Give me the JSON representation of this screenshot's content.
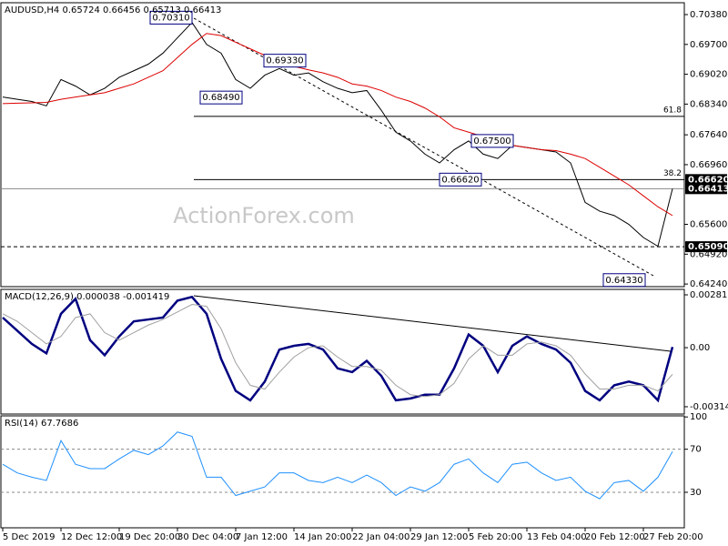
{
  "chart_data": [
    {
      "type": "line",
      "title": "AUDUSD,H4  0.65724 0.66456 0.65713 0.66413",
      "watermark": "ActionForex.com",
      "ylim": [
        0.6418,
        0.7065
      ],
      "yticks": [
        {
          "value": 0.7038,
          "label": "0.70380"
        },
        {
          "value": 0.697,
          "label": "0.69700"
        },
        {
          "value": 0.6902,
          "label": "0.69020"
        },
        {
          "value": 0.6834,
          "label": "0.68340"
        },
        {
          "value": 0.6764,
          "label": "0.67640"
        },
        {
          "value": 0.6696,
          "label": "0.66960"
        },
        {
          "value": 0.656,
          "label": "0.65600"
        },
        {
          "value": 0.6492,
          "label": "0.64920"
        },
        {
          "value": 0.6424,
          "label": "0.64240"
        }
      ],
      "series": [
        {
          "color": "#000000",
          "values": [
            0.685,
            0.6845,
            0.684,
            0.683,
            0.689,
            0.6875,
            0.6855,
            0.687,
            0.6895,
            0.691,
            0.6925,
            0.695,
            0.6985,
            0.702,
            0.697,
            0.695,
            0.689,
            0.687,
            0.69,
            0.6915,
            0.69,
            0.6905,
            0.6885,
            0.687,
            0.686,
            0.6865,
            0.682,
            0.677,
            0.675,
            0.672,
            0.67,
            0.673,
            0.675,
            0.672,
            0.671,
            0.674,
            0.6735,
            0.673,
            0.6725,
            0.67,
            0.661,
            0.659,
            0.658,
            0.656,
            0.653,
            0.651,
            0.66413
          ]
        },
        {
          "color": "#dd0000",
          "values": [
            0.6835,
            0.6836,
            0.6837,
            0.6838,
            0.6845,
            0.685,
            0.6855,
            0.686,
            0.687,
            0.688,
            0.6895,
            0.691,
            0.694,
            0.697,
            0.6995,
            0.699,
            0.6975,
            0.696,
            0.6945,
            0.693,
            0.692,
            0.6912,
            0.6905,
            0.6895,
            0.688,
            0.6875,
            0.6865,
            0.685,
            0.684,
            0.6825,
            0.6805,
            0.678,
            0.677,
            0.676,
            0.6745,
            0.674,
            0.6735,
            0.673,
            0.6728,
            0.672,
            0.671,
            0.669,
            0.667,
            0.665,
            0.6625,
            0.66,
            0.658
          ]
        }
      ],
      "levels": [
        {
          "value": 0.6806,
          "label": "61.8"
        },
        {
          "value": 0.6662,
          "label": "38.2"
        }
      ],
      "price_markers": [
        {
          "value": 0.6662,
          "label": "0.66620"
        },
        {
          "value": 0.66413,
          "label": "0.66413",
          "line": "solid"
        },
        {
          "value": 0.6509,
          "label": "0.65090",
          "line": "dashed"
        }
      ],
      "annotations": [
        {
          "value": 0.7031,
          "label": "0.70310"
        },
        {
          "value": 0.6933,
          "label": "0.69330"
        },
        {
          "value": 0.6849,
          "label": "0.68490"
        },
        {
          "value": 0.675,
          "label": "0.67500"
        },
        {
          "value": 0.6662,
          "label": "0.66620"
        },
        {
          "value": 0.6433,
          "label": "0.64330"
        }
      ]
    },
    {
      "type": "line",
      "title": "MACD(12,26,9) 0.000038 -0.001419",
      "ylim": [
        -0.00353,
        0.0031
      ],
      "yticks": [
        {
          "value": 0.00281,
          "label": "0.00281"
        },
        {
          "value": 0,
          "label": "0.00"
        },
        {
          "value": -0.003141,
          "label": "-0.003141"
        }
      ],
      "series": [
        {
          "color": "#000080",
          "values": [
            0.0016,
            0.0009,
            0.0002,
            -0.0003,
            0.0018,
            0.0026,
            0.0004,
            -0.0004,
            0.0006,
            0.0014,
            0.0015,
            0.0016,
            0.0025,
            0.0027,
            0.0018,
            -0.0006,
            -0.0023,
            -0.0028,
            -0.0018,
            -0.0001,
            0.0001,
            0.0002,
            -0.0001,
            -0.0011,
            -0.0013,
            -0.0007,
            -0.0015,
            -0.0028,
            -0.0027,
            -0.0025,
            -0.0025,
            -0.0011,
            0.0007,
            0.0001,
            -0.0013,
            0.0001,
            0.0006,
            0.0002,
            -0.0001,
            -0.0008,
            -0.0023,
            -0.0028,
            -0.002,
            -0.0018,
            -0.002,
            -0.0028,
            3.8e-05
          ]
        },
        {
          "color": "#a0a0a0",
          "values": [
            0.0018,
            0.0014,
            0.0008,
            0.0002,
            0.0006,
            0.0016,
            0.0018,
            0.0008,
            0.0004,
            0.0008,
            0.0012,
            0.0015,
            0.0019,
            0.0023,
            0.0022,
            0.001,
            -0.0008,
            -0.002,
            -0.0022,
            -0.0013,
            -0.0005,
            0.0,
            0.0001,
            -0.0005,
            -0.001,
            -0.001,
            -0.0012,
            -0.002,
            -0.0025,
            -0.0026,
            -0.0025,
            -0.0019,
            -0.0006,
            0.0001,
            -0.0004,
            -0.0004,
            0.0002,
            0.0003,
            0.0001,
            -0.0004,
            -0.0014,
            -0.0022,
            -0.0022,
            -0.002,
            -0.002,
            -0.0023,
            -0.001419
          ]
        }
      ]
    },
    {
      "type": "line",
      "title": "RSI(14) 67.7686",
      "ylim": [
        -3,
        101
      ],
      "yticks": [
        100,
        70,
        30
      ],
      "x": [
        "5 Dec 2019",
        null,
        null,
        null,
        "12 Dec 12:00",
        null,
        null,
        null,
        "19 Dec 20:00",
        null,
        null,
        null,
        "30 Dec 04:00",
        null,
        null,
        null,
        "7 Jan 12:00",
        null,
        null,
        null,
        "14 Jan 20:00",
        null,
        null,
        null,
        "22 Jan 04:00",
        null,
        null,
        null,
        "29 Jan 12:00",
        null,
        null,
        null,
        "5 Feb 20:00",
        null,
        null,
        null,
        "13 Feb 04:00",
        null,
        null,
        null,
        "20 Feb 12:00",
        null,
        null,
        null,
        "27 Feb 20:00",
        null,
        null
      ],
      "series": [
        {
          "color": "#1e90ff",
          "values": [
            56,
            48,
            44,
            41,
            78,
            56,
            52,
            52,
            61,
            69,
            65,
            73,
            86,
            82,
            44,
            44,
            27,
            31,
            35,
            48,
            48,
            41,
            39,
            44,
            39,
            46,
            39,
            27,
            35,
            31,
            39,
            56,
            61,
            48,
            39,
            56,
            58,
            48,
            41,
            44,
            31,
            24,
            39,
            41,
            31,
            44,
            67.7686
          ]
        }
      ]
    }
  ]
}
